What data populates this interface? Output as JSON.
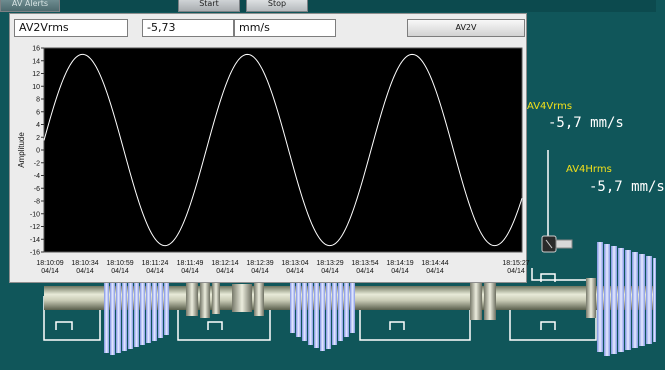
{
  "top_tabs": [
    {
      "label": "AV Alerts"
    },
    {
      "label": "Start"
    },
    {
      "label": "Stop"
    }
  ],
  "panel": {
    "channel_name": "AV2Vrms",
    "value": "-5,73",
    "unit": "mm/s",
    "button_label": "AV2V"
  },
  "chart_data": {
    "type": "line",
    "ylabel": "Amplitude",
    "xlabel": "",
    "ylim": [
      -16,
      16
    ],
    "y_ticks": [
      "16",
      "14",
      "12",
      "10",
      "8",
      "6",
      "4",
      "2",
      "0",
      "-2",
      "-4",
      "-6",
      "-8",
      "-10",
      "-12",
      "-14",
      "-16"
    ],
    "x_ticks": [
      {
        "time": "18:10:09",
        "date": "04/14"
      },
      {
        "time": "18:10:34",
        "date": "04/14"
      },
      {
        "time": "18:10:59",
        "date": "04/14"
      },
      {
        "time": "18:11:24",
        "date": "04/14"
      },
      {
        "time": "18:11:49",
        "date": "04/14"
      },
      {
        "time": "18:12:14",
        "date": "04/14"
      },
      {
        "time": "18:12:39",
        "date": "04/14"
      },
      {
        "time": "18:13:04",
        "date": "04/14"
      },
      {
        "time": "18:13:29",
        "date": "04/14"
      },
      {
        "time": "18:13:54",
        "date": "04/14"
      },
      {
        "time": "18:14:19",
        "date": "04/14"
      },
      {
        "time": "18:14:44",
        "date": "04/14"
      },
      {
        "time": "18:15:27",
        "date": "04/14"
      }
    ],
    "series": [
      {
        "amplitude": 15,
        "cycles": 2.9,
        "start_value": 1.5,
        "end_value": -5.7,
        "color": "#ffffff"
      }
    ],
    "background": "#000000",
    "grid": false
  },
  "sensors": [
    {
      "title": "AV4Vrms",
      "value": "-5,7 mm/s"
    },
    {
      "title": "AV4Hrms",
      "value": "-5,7 mm/s"
    }
  ],
  "colors": {
    "background": "#10565a",
    "sensor_title": "#f2e01a",
    "sensor_value": "#ffffff"
  }
}
